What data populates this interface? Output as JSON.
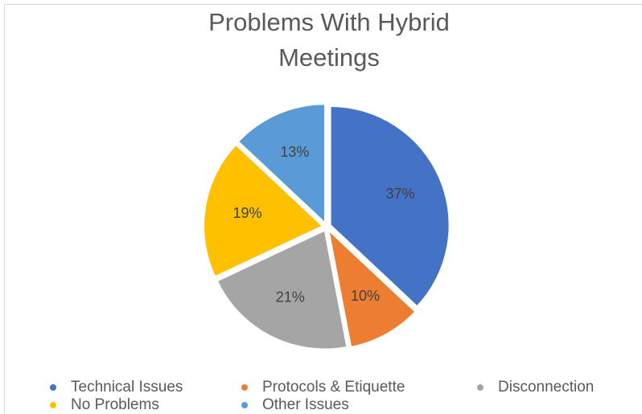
{
  "chart_data": {
    "type": "pie",
    "title": "Problems With Hybrid Meetings",
    "categories": [
      "Technical Issues",
      "Protocols & Etiquette",
      "Disconnection",
      "No Problems",
      "Other Issues"
    ],
    "values": [
      37,
      10,
      21,
      19,
      13
    ],
    "value_labels": [
      "37%",
      "10%",
      "21%",
      "19%",
      "13%"
    ],
    "colors": [
      "#4472c4",
      "#ed7d31",
      "#a5a5a5",
      "#ffc000",
      "#5b9bd5"
    ],
    "legend": "bottom"
  }
}
